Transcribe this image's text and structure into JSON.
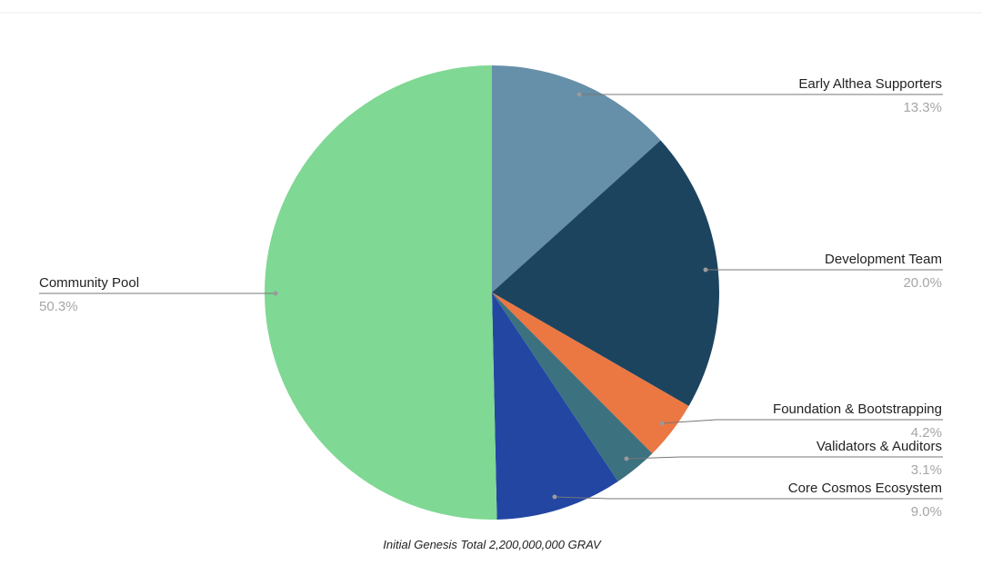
{
  "chart_data": {
    "type": "pie",
    "title": "Initial Genesis Total 2,200,000,000 GRAV",
    "categories": [
      "Early Althea Supporters",
      "Development Team",
      "Foundation & Bootstrapping",
      "Validators & Auditors",
      "Core Cosmos Ecosystem",
      "Community Pool"
    ],
    "values": [
      13.3,
      20.0,
      4.2,
      3.1,
      9.0,
      50.3
    ],
    "value_labels": [
      "13.3%",
      "20.0%",
      "4.2%",
      "3.1%",
      "9.0%",
      "50.3%"
    ],
    "colors": [
      "#668fa9",
      "#1d445e",
      "#eb7742",
      "#3c7180",
      "#2346a3",
      "#7fd893"
    ]
  }
}
